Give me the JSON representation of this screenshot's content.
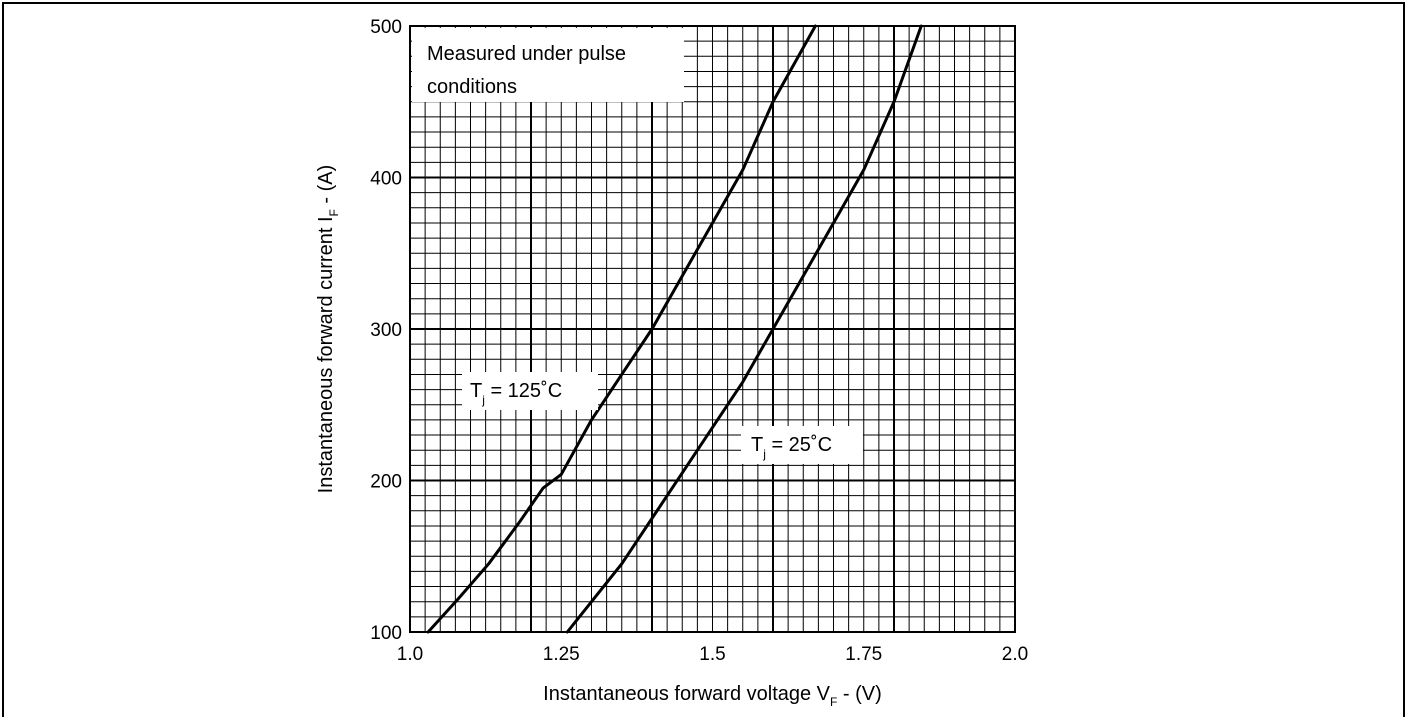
{
  "chart_data": {
    "type": "line",
    "xlabel": "Instantaneous forward voltage V",
    "xlabel_sub": "F",
    "xlabel_tail": " - (V)",
    "ylabel": "Instantaneous forward current I",
    "ylabel_sub": "F",
    "ylabel_tail": " - (A)",
    "xlim": [
      1.0,
      2.0
    ],
    "ylim": [
      100,
      500
    ],
    "xticks": [
      "1.0",
      "1.25",
      "1.5",
      "1.75",
      "2.0"
    ],
    "yticks": [
      "100",
      "200",
      "300",
      "400",
      "500"
    ],
    "grid": true,
    "note_line1": "Measured under pulse",
    "note_line2": "conditions",
    "series": [
      {
        "name": "Tj = 125°C",
        "label_main": "T",
        "label_sub": "j",
        "label_tail": " = 125˚C",
        "x": [
          1.03,
          1.08,
          1.13,
          1.18,
          1.22,
          1.25,
          1.3,
          1.35,
          1.4,
          1.45,
          1.5,
          1.55,
          1.6,
          1.67
        ],
        "y": [
          100,
          122,
          145,
          172,
          195,
          204,
          240,
          270,
          300,
          335,
          370,
          405,
          450,
          500
        ]
      },
      {
        "name": "Tj = 25°C",
        "label_main": "T",
        "label_sub": "j",
        "label_tail": " = 25˚C",
        "x": [
          1.26,
          1.3,
          1.35,
          1.4,
          1.45,
          1.5,
          1.55,
          1.6,
          1.65,
          1.7,
          1.75,
          1.8,
          1.845
        ],
        "y": [
          100,
          120,
          145,
          175,
          205,
          235,
          265,
          300,
          335,
          370,
          405,
          450,
          500
        ]
      }
    ]
  }
}
